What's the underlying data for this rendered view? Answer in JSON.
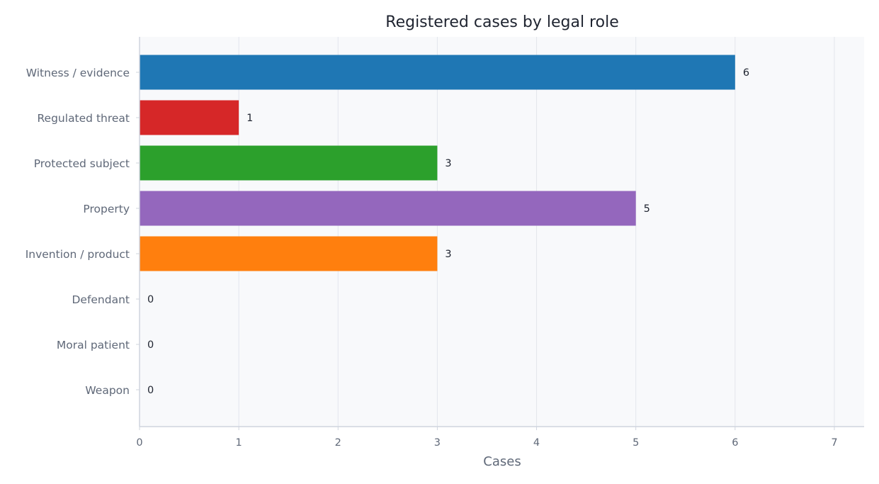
{
  "chart_data": {
    "type": "bar",
    "orientation": "horizontal",
    "title": "Registered cases by legal role",
    "xlabel": "Cases",
    "ylabel": "",
    "xlim": [
      0,
      7.3
    ],
    "x_ticks": [
      "0",
      "1",
      "2",
      "3",
      "4",
      "5",
      "6",
      "7"
    ],
    "grid": "vertical",
    "legend": "none",
    "categories": [
      "Witness / evidence",
      "Regulated threat",
      "Protected subject",
      "Property",
      "Invention / product",
      "Defendant",
      "Moral patient",
      "Weapon"
    ],
    "values": [
      6,
      1,
      3,
      5,
      3,
      0,
      0,
      0
    ],
    "data_labels": [
      "6",
      "1",
      "3",
      "5",
      "3",
      "0",
      "0",
      "0"
    ],
    "colors": [
      "#1f77b4",
      "#d62728",
      "#2ca02c",
      "#9467bd",
      "#ff7f0e",
      "#8c564b",
      "#e377c2",
      "#7f7f7f"
    ],
    "plot_background": "#f8f9fb",
    "grid_color": "#e3e6ec",
    "axis_color": "#cfd4de"
  }
}
